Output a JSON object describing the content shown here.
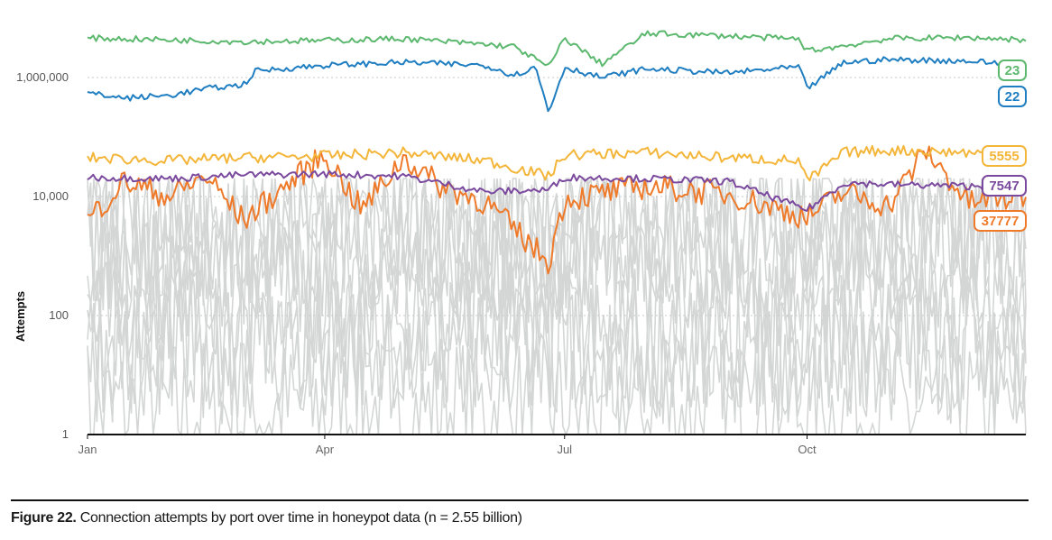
{
  "chart_data": {
    "type": "line",
    "ylabel": "Attempts",
    "xlabel": "",
    "y_scale": "log",
    "ylim": [
      1,
      10000000
    ],
    "y_ticks": [
      {
        "value": 1,
        "label": "1"
      },
      {
        "value": 100,
        "label": "100"
      },
      {
        "value": 10000,
        "label": "10,000"
      },
      {
        "value": 1000000,
        "label": "1,000,000"
      }
    ],
    "x_ticks": [
      {
        "value": "2022-01-01",
        "label": "Jan"
      },
      {
        "value": "2022-04-01",
        "label": "Apr"
      },
      {
        "value": "2022-07-01",
        "label": "Jul"
      },
      {
        "value": "2022-10-01",
        "label": "Oct"
      }
    ],
    "x_range": [
      "2022-01-01",
      "2022-12-23"
    ],
    "grid": "dotted horizontal lines at y ticks",
    "series": [
      {
        "name": "23",
        "color": "#5cb86e",
        "points": [
          [
            "2022-01-01",
            4600000
          ],
          [
            "2022-02-01",
            4300000
          ],
          [
            "2022-03-01",
            4000000
          ],
          [
            "2022-04-01",
            4200000
          ],
          [
            "2022-05-01",
            4500000
          ],
          [
            "2022-06-01",
            3600000
          ],
          [
            "2022-06-12",
            3300000
          ],
          [
            "2022-06-25",
            1500000
          ],
          [
            "2022-07-01",
            4600000
          ],
          [
            "2022-07-15",
            1700000
          ],
          [
            "2022-08-01",
            5500000
          ],
          [
            "2022-09-01",
            5000000
          ],
          [
            "2022-09-28",
            4400000
          ],
          [
            "2022-10-01",
            2800000
          ],
          [
            "2022-10-15",
            3400000
          ],
          [
            "2022-11-01",
            4500000
          ],
          [
            "2022-12-01",
            4700000
          ],
          [
            "2022-12-23",
            4300000
          ]
        ]
      },
      {
        "name": "22",
        "color": "#1f7ec1",
        "points": [
          [
            "2022-01-01",
            550000
          ],
          [
            "2022-01-15",
            450000
          ],
          [
            "2022-02-01",
            500000
          ],
          [
            "2022-02-15",
            650000
          ],
          [
            "2022-03-01",
            750000
          ],
          [
            "2022-03-06",
            1300000
          ],
          [
            "2022-04-01",
            1600000
          ],
          [
            "2022-05-01",
            1800000
          ],
          [
            "2022-06-01",
            1600000
          ],
          [
            "2022-06-12",
            1100000
          ],
          [
            "2022-06-20",
            1500000
          ],
          [
            "2022-06-25",
            260000
          ],
          [
            "2022-07-01",
            1500000
          ],
          [
            "2022-07-15",
            1000000
          ],
          [
            "2022-08-01",
            1400000
          ],
          [
            "2022-09-01",
            1200000
          ],
          [
            "2022-09-28",
            1500000
          ],
          [
            "2022-10-01",
            650000
          ],
          [
            "2022-10-15",
            1800000
          ],
          [
            "2022-11-01",
            2000000
          ],
          [
            "2022-12-01",
            1900000
          ],
          [
            "2022-12-23",
            1600000
          ]
        ]
      },
      {
        "name": "5555",
        "color": "#f4b63a",
        "points": [
          [
            "2022-01-01",
            45000
          ],
          [
            "2022-02-01",
            40000
          ],
          [
            "2022-03-01",
            45000
          ],
          [
            "2022-04-01",
            48000
          ],
          [
            "2022-05-01",
            55000
          ],
          [
            "2022-06-01",
            40000
          ],
          [
            "2022-06-25",
            22000
          ],
          [
            "2022-07-01",
            50000
          ],
          [
            "2022-08-01",
            55000
          ],
          [
            "2022-09-01",
            45000
          ],
          [
            "2022-09-28",
            40000
          ],
          [
            "2022-10-01",
            18000
          ],
          [
            "2022-10-15",
            55000
          ],
          [
            "2022-11-01",
            60000
          ],
          [
            "2022-12-01",
            55000
          ],
          [
            "2022-12-23",
            50000
          ]
        ]
      },
      {
        "name": "7547",
        "color": "#7b4a9e",
        "points": [
          [
            "2022-01-01",
            21000
          ],
          [
            "2022-02-01",
            20000
          ],
          [
            "2022-03-01",
            23000
          ],
          [
            "2022-04-01",
            24000
          ],
          [
            "2022-05-01",
            22000
          ],
          [
            "2022-06-01",
            12000
          ],
          [
            "2022-06-25",
            13000
          ],
          [
            "2022-07-01",
            21000
          ],
          [
            "2022-08-01",
            20000
          ],
          [
            "2022-09-01",
            18000
          ],
          [
            "2022-10-01",
            6000
          ],
          [
            "2022-10-15",
            17000
          ],
          [
            "2022-11-01",
            16000
          ],
          [
            "2022-12-01",
            15000
          ],
          [
            "2022-12-23",
            14000
          ]
        ]
      },
      {
        "name": "37777",
        "color": "#ee7a2a",
        "points": [
          [
            "2022-01-01",
            4000
          ],
          [
            "2022-01-15",
            18000
          ],
          [
            "2022-02-01",
            10000
          ],
          [
            "2022-02-15",
            22000
          ],
          [
            "2022-03-01",
            4000
          ],
          [
            "2022-04-01",
            50000
          ],
          [
            "2022-04-15",
            6000
          ],
          [
            "2022-05-01",
            45000
          ],
          [
            "2022-05-15",
            15000
          ],
          [
            "2022-06-01",
            8000
          ],
          [
            "2022-06-25",
            800
          ],
          [
            "2022-07-01",
            9000
          ],
          [
            "2022-08-01",
            15000
          ],
          [
            "2022-09-01",
            11000
          ],
          [
            "2022-10-01",
            4500
          ],
          [
            "2022-10-15",
            12000
          ],
          [
            "2022-11-01",
            7000
          ],
          [
            "2022-11-15",
            60000
          ],
          [
            "2022-12-01",
            8000
          ],
          [
            "2022-12-23",
            10000
          ]
        ]
      }
    ],
    "background_series": {
      "color": "#d4d6d6",
      "range_min": 1,
      "range_max": 20000
    },
    "annotations": []
  },
  "caption": {
    "label": "Figure 22.",
    "text": " Connection attempts by port over time in honeypot data (n = 2.55 billion)"
  }
}
